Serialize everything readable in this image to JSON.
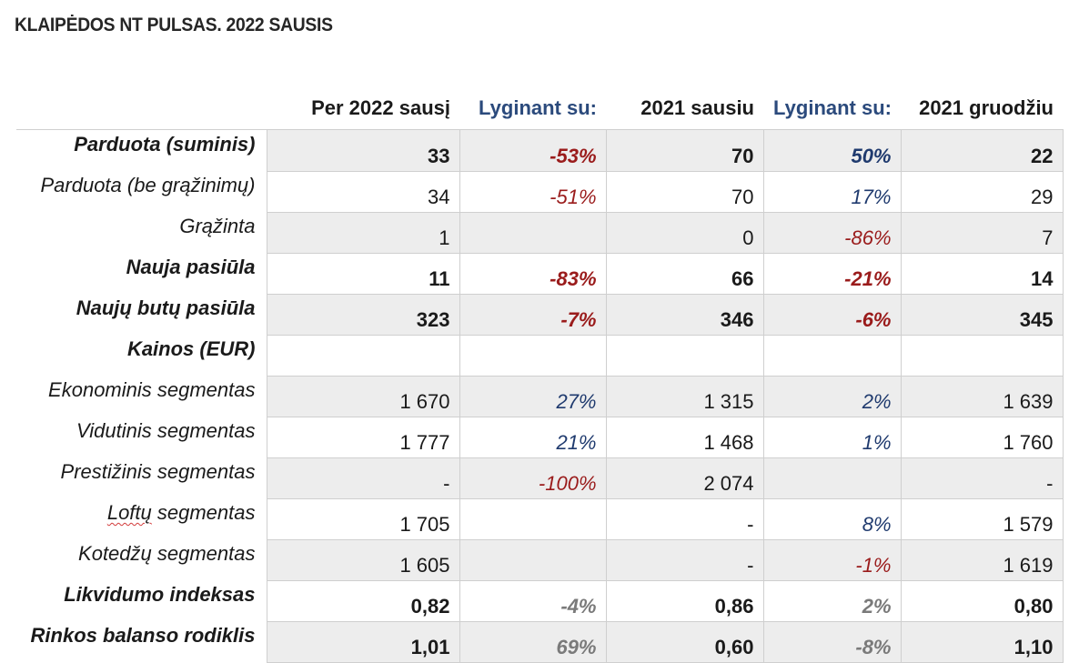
{
  "title": "KLAIPĖDOS NT PULSAS. 2022 SAUSIS",
  "headers": [
    "Per 2022 sausį",
    "Lyginant su:",
    "2021 sausiu",
    "Lyginant su:",
    "2021 gruodžiu"
  ],
  "colors": {
    "negative": "#9a1b1b",
    "positive": "#1f3a6e",
    "neutral": "#7a7a7a",
    "compare_header": "#2b4a7c",
    "shade": "#ededed"
  },
  "rows": [
    {
      "label": "Parduota (suminis)",
      "bold": true,
      "shade": true,
      "cells": [
        "33",
        "-53%",
        "70",
        "50%",
        "22"
      ]
    },
    {
      "label": "Parduota (be grąžinimų)",
      "bold": false,
      "shade": false,
      "cells": [
        "34",
        "-51%",
        "70",
        "17%",
        "29"
      ]
    },
    {
      "label": "Grąžinta",
      "bold": false,
      "shade": true,
      "cells": [
        "1",
        "",
        "0",
        "-86%",
        "7"
      ]
    },
    {
      "label": "Nauja pasiūla",
      "bold": true,
      "shade": false,
      "cells": [
        "11",
        "-83%",
        "66",
        "-21%",
        "14"
      ]
    },
    {
      "label": "Naujų butų pasiūla",
      "bold": true,
      "shade": true,
      "cells": [
        "323",
        "-7%",
        "346",
        "-6%",
        "345"
      ]
    },
    {
      "label": "Kainos (EUR)",
      "bold": true,
      "shade": false,
      "cells": [
        "",
        "",
        "",
        "",
        ""
      ]
    },
    {
      "label": "Ekonominis segmentas",
      "bold": false,
      "shade": true,
      "cells": [
        "1 670",
        "27%",
        "1 315",
        "2%",
        "1 639"
      ]
    },
    {
      "label": "Vidutinis segmentas",
      "bold": false,
      "shade": false,
      "cells": [
        "1 777",
        "21%",
        "1 468",
        "1%",
        "1 760"
      ]
    },
    {
      "label": "Prestižinis segmentas",
      "bold": false,
      "shade": true,
      "cells": [
        "-",
        "-100%",
        "2 074",
        "",
        "-"
      ]
    },
    {
      "label": "Loftų segmentas",
      "bold": false,
      "shade": false,
      "cells": [
        "1 705",
        "",
        "-",
        "8%",
        "1 579"
      ]
    },
    {
      "label": "Kotedžų segmentas",
      "bold": false,
      "shade": true,
      "cells": [
        "1 605",
        "",
        "-",
        "-1%",
        "1 619"
      ]
    },
    {
      "label": "Likvidumo indeksas",
      "bold": true,
      "shade": false,
      "cells": [
        "0,82",
        "-4%",
        "0,86",
        "2%",
        "0,80"
      ],
      "compare_style": "neutral"
    },
    {
      "label": "Rinkos balanso rodiklis",
      "bold": true,
      "shade": true,
      "cells": [
        "1,01",
        "69%",
        "0,60",
        "-8%",
        "1,10"
      ],
      "compare_style": "neutral"
    }
  ]
}
